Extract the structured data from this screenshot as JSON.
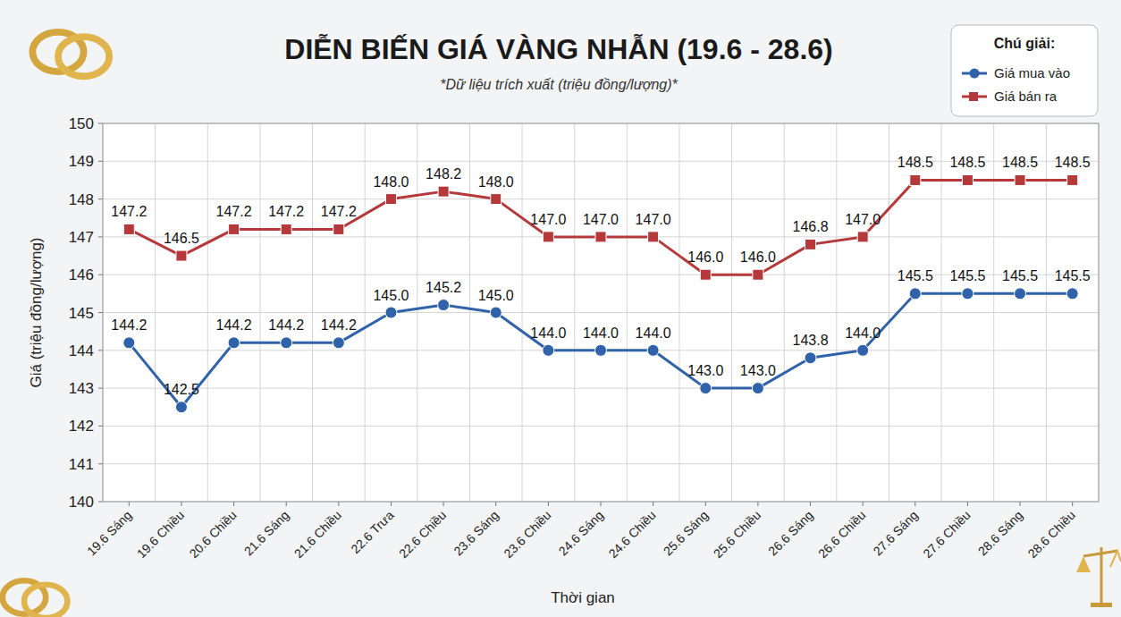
{
  "chart_data": {
    "type": "line",
    "title": "DIỄN BIẾN GIÁ VÀNG NHẪN (19.6 - 28.6)",
    "subtitle": "*Dữ liệu trích xuất (triệu đồng/lượng)*",
    "x_label": "Thời gian",
    "y_label": "Giá (triệu đồng/lượng)",
    "legend_title": "Chú giải:",
    "categories": [
      "19.6 Sáng",
      "19.6 Chiều",
      "20.6 Chiều",
      "21.6 Sáng",
      "21.6 Chiều",
      "22.6 Trưa",
      "22.6 Chiều",
      "23.6 Sáng",
      "23.6 Chiều",
      "24.6 Sáng",
      "24.6 Chiều",
      "25.6 Sáng",
      "25.6 Chiều",
      "26.6 Sáng",
      "26.6 Chiều",
      "27.6 Sáng",
      "27.6 Chiều",
      "28.6 Sáng",
      "28.6 Chiều"
    ],
    "series": [
      {
        "name": "Giá mua vào",
        "color": "#2f62a8",
        "marker": "circle",
        "line_style": "solid",
        "values": [
          144.2,
          142.5,
          144.2,
          144.2,
          144.2,
          145.0,
          145.2,
          145.0,
          144.0,
          144.0,
          144.0,
          143.0,
          143.0,
          143.8,
          144.0,
          145.5,
          145.5,
          145.5,
          145.5
        ],
        "value_labels": [
          "144.2",
          "142.5",
          "144.2",
          "144.2",
          "144.2",
          "145.0",
          "145.2",
          "145.0",
          "144.0",
          "144.0",
          "144.0",
          "143.0",
          "143.0",
          "143.8",
          "144.0",
          "145.5",
          "145.5",
          "145.5",
          "145.5"
        ]
      },
      {
        "name": "Giá bán ra",
        "color": "#b5383a",
        "marker": "square",
        "line_style": "solid",
        "values": [
          147.2,
          146.5,
          147.2,
          147.2,
          147.2,
          148.0,
          148.2,
          148.0,
          147.0,
          147.0,
          147.0,
          146.0,
          146.0,
          146.8,
          147.0,
          148.5,
          148.5,
          148.5,
          148.5
        ],
        "value_labels": [
          "147.2",
          "146.5",
          "147.2",
          "147.2",
          "147.2",
          "148.0",
          "148.2",
          "148.0",
          "147.0",
          "147.0",
          "147.0",
          "146.0",
          "146.0",
          "146.8",
          "147.0",
          "148.5",
          "148.5",
          "148.5",
          "148.5"
        ]
      }
    ],
    "ylim": [
      140,
      150
    ],
    "yticks": [
      140,
      141,
      142,
      143,
      144,
      145,
      146,
      147,
      148,
      149,
      150
    ],
    "grid": true,
    "legend": "top-right",
    "data_labels": true
  }
}
